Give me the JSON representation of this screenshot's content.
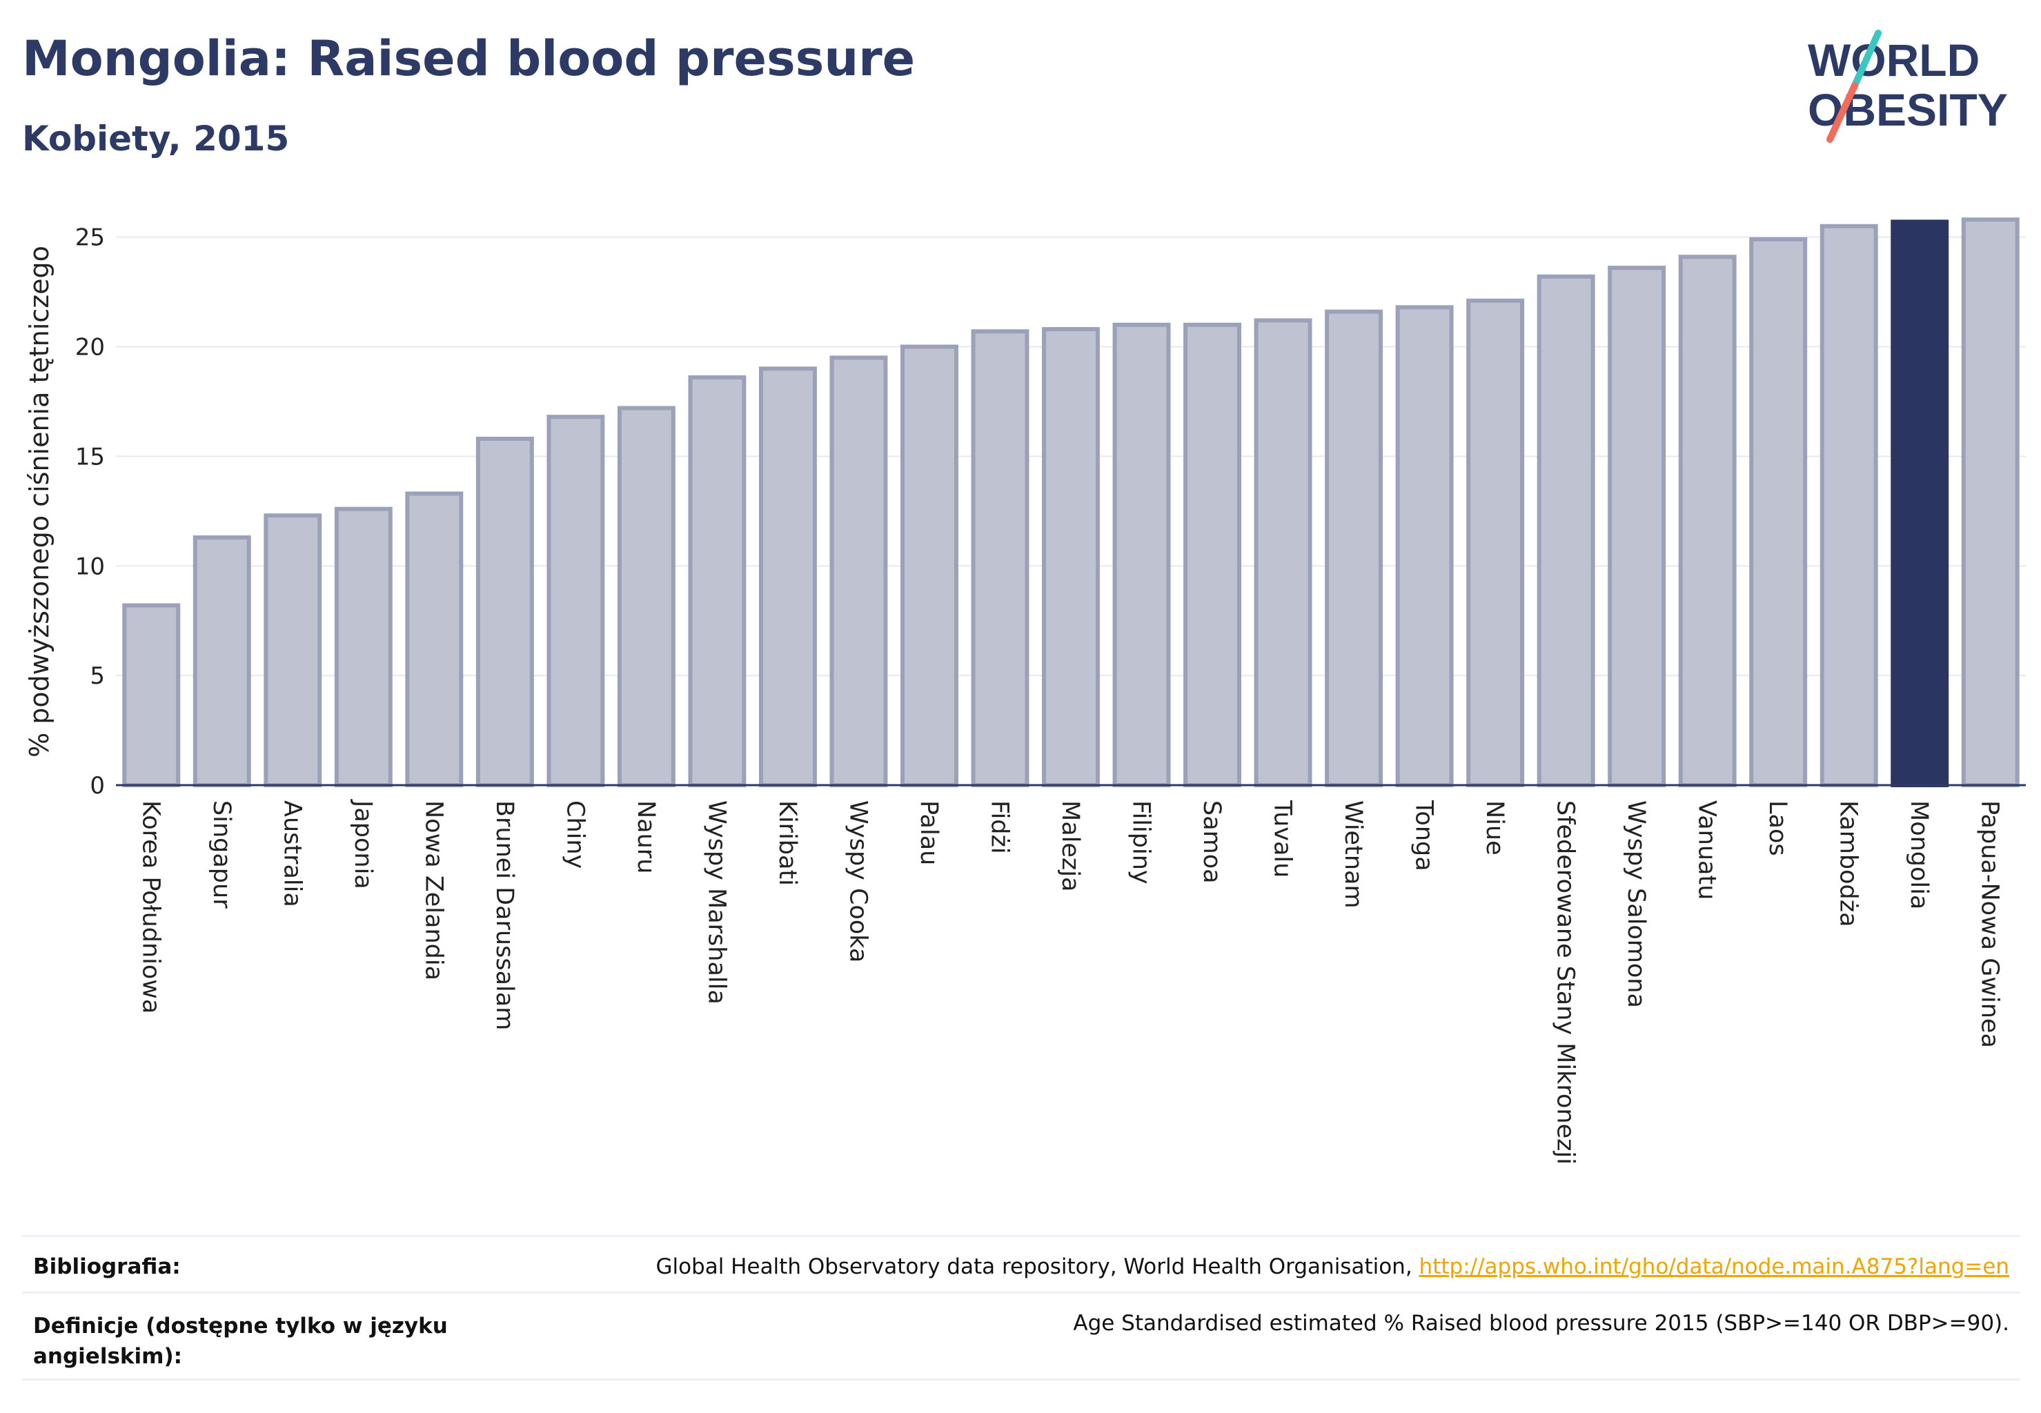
{
  "header": {
    "title": "Mongolia: Raised blood pressure",
    "subtitle": "Kobiety, 2015"
  },
  "logo": {
    "line1": "WORLD",
    "line2": "OBESITY",
    "colors": {
      "text": "#2d3a66",
      "slash_top": "#3cc6c2",
      "slash_bottom": "#ef6d5a"
    }
  },
  "colors": {
    "bar_fill": "#bfc3d1",
    "bar_stroke": "#9aa1b8",
    "highlight": "#2b3561",
    "axis": "#2d3a66",
    "grid": "#e6e9f0"
  },
  "chart_data": {
    "type": "bar",
    "title": "",
    "xlabel": "",
    "ylabel": "% podwyższonego ciśnienia tętniczego",
    "ylim": [
      0,
      26.5
    ],
    "yticks": [
      0,
      5,
      10,
      15,
      20,
      25
    ],
    "grid": true,
    "highlight": "Mongolia",
    "categories": [
      "Korea Południowa",
      "Singapur",
      "Australia",
      "Japonia",
      "Nowa Zelandia",
      "Brunei Darussalam",
      "Chiny",
      "Nauru",
      "Wyspy Marshalla",
      "Kiribati",
      "Wyspy Cooka",
      "Palau",
      "Fidżi",
      "Malezja",
      "Filipiny",
      "Samoa",
      "Tuvalu",
      "Wietnam",
      "Tonga",
      "Niue",
      "Sfederowane Stany Mikronezji",
      "Wyspy Salomona",
      "Vanuatu",
      "Laos",
      "Kambodża",
      "Mongolia",
      "Papua-Nowa Gwinea"
    ],
    "values": [
      8.2,
      11.3,
      12.3,
      12.6,
      13.3,
      15.8,
      16.8,
      17.2,
      18.6,
      19.0,
      19.5,
      20.0,
      20.7,
      20.8,
      21.0,
      21.0,
      21.2,
      21.6,
      21.8,
      22.1,
      23.2,
      23.6,
      24.1,
      24.9,
      25.5,
      25.7,
      25.8
    ]
  },
  "footer": {
    "bibliography_label": "Bibliografia:",
    "bibliography_text": "Global Health Observatory data repository, World Health Organisation, ",
    "bibliography_link": "http://apps.who.int/gho/data/node.main.A875?lang=en",
    "definitions_label_line1": "Definicje (dostępne tylko w języku",
    "definitions_label_line2": "angielskim):",
    "definitions_text": "Age Standardised estimated % Raised blood pressure 2015 (SBP>=140 OR DBP>=90)."
  }
}
